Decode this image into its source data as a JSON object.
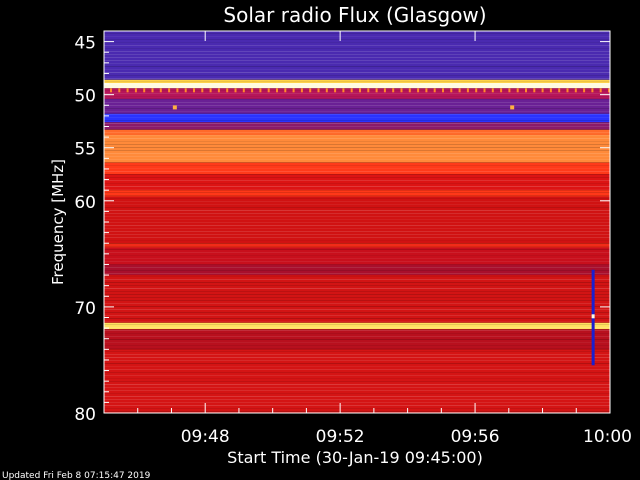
{
  "footer": {
    "updated": "Updated Fri Feb  8 07:15:47 2019"
  },
  "chart_data": {
    "type": "heatmap",
    "title": "Solar radio Flux (Glasgow)",
    "xlabel": "Start Time (30-Jan-19 09:45:00)",
    "ylabel": "Frequency [MHz]",
    "x_ticks": [
      "09:48",
      "09:52",
      "09:56",
      "10:00"
    ],
    "x_tick_minutes": [
      3,
      7,
      11,
      15
    ],
    "xlim_minutes": [
      0,
      15
    ],
    "ylim_mhz": [
      44,
      80
    ],
    "y_ticks": [
      45,
      50,
      55,
      60,
      70,
      80
    ],
    "frequency_bands": [
      {
        "from": 44.0,
        "to": 48.6,
        "level": "low",
        "color": "#4a2ab0"
      },
      {
        "from": 48.6,
        "to": 48.9,
        "level": "high",
        "color": "#ffd24a"
      },
      {
        "from": 48.9,
        "to": 49.4,
        "level": "very-high",
        "color": "#fffbe0"
      },
      {
        "from": 49.4,
        "to": 50.4,
        "level": "medium",
        "color": "#b6155a"
      },
      {
        "from": 50.4,
        "to": 51.8,
        "level": "low",
        "color": "#6a2095"
      },
      {
        "from": 51.8,
        "to": 52.6,
        "level": "very-low",
        "color": "#2a33ff"
      },
      {
        "from": 52.6,
        "to": 53.3,
        "level": "low",
        "color": "#8a1a6a"
      },
      {
        "from": 53.3,
        "to": 53.8,
        "level": "high",
        "color": "#ff6a2a"
      },
      {
        "from": 53.8,
        "to": 56.4,
        "level": "high",
        "color": "#ff8a3a"
      },
      {
        "from": 56.4,
        "to": 57.5,
        "level": "medium-high",
        "color": "#ff3a1a"
      },
      {
        "from": 57.5,
        "to": 59.0,
        "level": "medium",
        "color": "#dc1414"
      },
      {
        "from": 59.0,
        "to": 59.6,
        "level": "medium-high",
        "color": "#ff3818"
      },
      {
        "from": 59.6,
        "to": 64.0,
        "level": "medium",
        "color": "#d01212"
      },
      {
        "from": 64.0,
        "to": 64.4,
        "level": "medium-high",
        "color": "#f02c18"
      },
      {
        "from": 64.4,
        "to": 66.0,
        "level": "medium",
        "color": "#c80f1c"
      },
      {
        "from": 66.0,
        "to": 67.0,
        "level": "medium-low",
        "color": "#a80f2c"
      },
      {
        "from": 67.0,
        "to": 71.5,
        "level": "medium",
        "color": "#d21414"
      },
      {
        "from": 71.5,
        "to": 72.1,
        "level": "high",
        "color": "#ffe060"
      },
      {
        "from": 72.1,
        "to": 74.0,
        "level": "medium",
        "color": "#b8101e"
      },
      {
        "from": 74.0,
        "to": 80.0,
        "level": "medium",
        "color": "#d41414"
      }
    ],
    "burst_at_minutes": 14.5,
    "burst_freq_mhz": [
      66.5,
      75.5
    ],
    "spike_dots": [
      {
        "minute": 2.1,
        "mhz": 51.2
      },
      {
        "minute": 12.1,
        "mhz": 51.2
      }
    ]
  }
}
